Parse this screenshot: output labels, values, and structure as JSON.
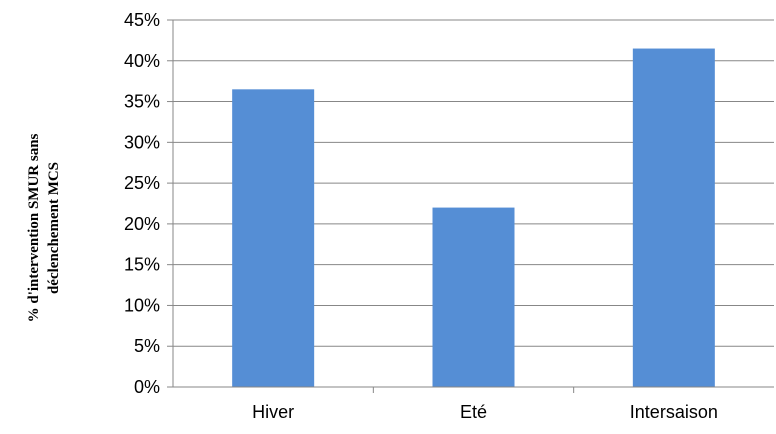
{
  "chart_data": {
    "type": "bar",
    "categories": [
      "Hiver",
      "Eté",
      "Intersaison"
    ],
    "values": [
      36.5,
      22,
      41.5
    ],
    "ylabel_lines": [
      "% d'intervention SMUR sans",
      "déclenchement  MCS"
    ],
    "yticks": [
      "0%",
      "5%",
      "10%",
      "15%",
      "20%",
      "25%",
      "30%",
      "35%",
      "40%",
      "45%"
    ],
    "ylim": [
      0,
      45
    ],
    "ystep": 5,
    "grid": true,
    "legend": false,
    "bar_color": "#558ed5"
  }
}
